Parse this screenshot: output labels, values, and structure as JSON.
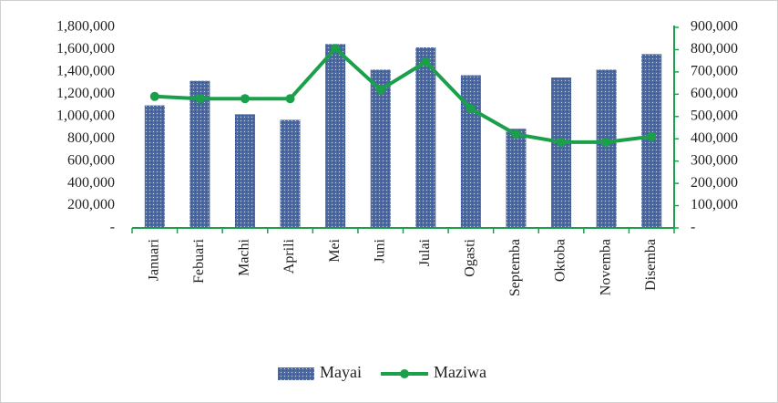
{
  "chart_data": {
    "type": "bar-line",
    "categories": [
      "Januari",
      "Febuari",
      "Machi",
      "Aprili",
      "Mei",
      "Juni",
      "Julai",
      "Ogasti",
      "Septemba",
      "Oktoba",
      "Novemba",
      "Disemba"
    ],
    "series": [
      {
        "name": "Mayai",
        "type": "bar",
        "color": "#4a6aa8",
        "values": [
          1100000,
          1320000,
          1020000,
          970000,
          1650000,
          1420000,
          1620000,
          1370000,
          890000,
          1350000,
          1420000,
          1560000
        ]
      },
      {
        "name": "Maziwa",
        "type": "line",
        "axis": "y2",
        "color": "#1aa04a",
        "values": [
          590000,
          580000,
          580000,
          580000,
          805000,
          620000,
          745000,
          535000,
          420000,
          385000,
          385000,
          410000
        ]
      }
    ],
    "ylim": [
      0,
      1800000
    ],
    "yticks": [
      {
        "value": 0,
        "label": "-"
      },
      {
        "value": 200000,
        "label": "200,000"
      },
      {
        "value": 400000,
        "label": "400,000"
      },
      {
        "value": 600000,
        "label": "600,000"
      },
      {
        "value": 800000,
        "label": "800,000"
      },
      {
        "value": 1000000,
        "label": "1,000,000"
      },
      {
        "value": 1200000,
        "label": "1,200,000"
      },
      {
        "value": 1400000,
        "label": "1,400,000"
      },
      {
        "value": 1600000,
        "label": "1,600,000"
      },
      {
        "value": 1800000,
        "label": "1,800,000"
      }
    ],
    "y2lim": [
      0,
      900000
    ],
    "y2ticks": [
      {
        "value": 0,
        "label": "-"
      },
      {
        "value": 100000,
        "label": "100,000"
      },
      {
        "value": 200000,
        "label": "200,000"
      },
      {
        "value": 300000,
        "label": "300,000"
      },
      {
        "value": 400000,
        "label": "400,000"
      },
      {
        "value": 500000,
        "label": "500,000"
      },
      {
        "value": 600000,
        "label": "600,000"
      },
      {
        "value": 700000,
        "label": "700,000"
      },
      {
        "value": 800000,
        "label": "800,000"
      },
      {
        "value": 900000,
        "label": "900,000"
      }
    ],
    "legend": "bottom"
  }
}
